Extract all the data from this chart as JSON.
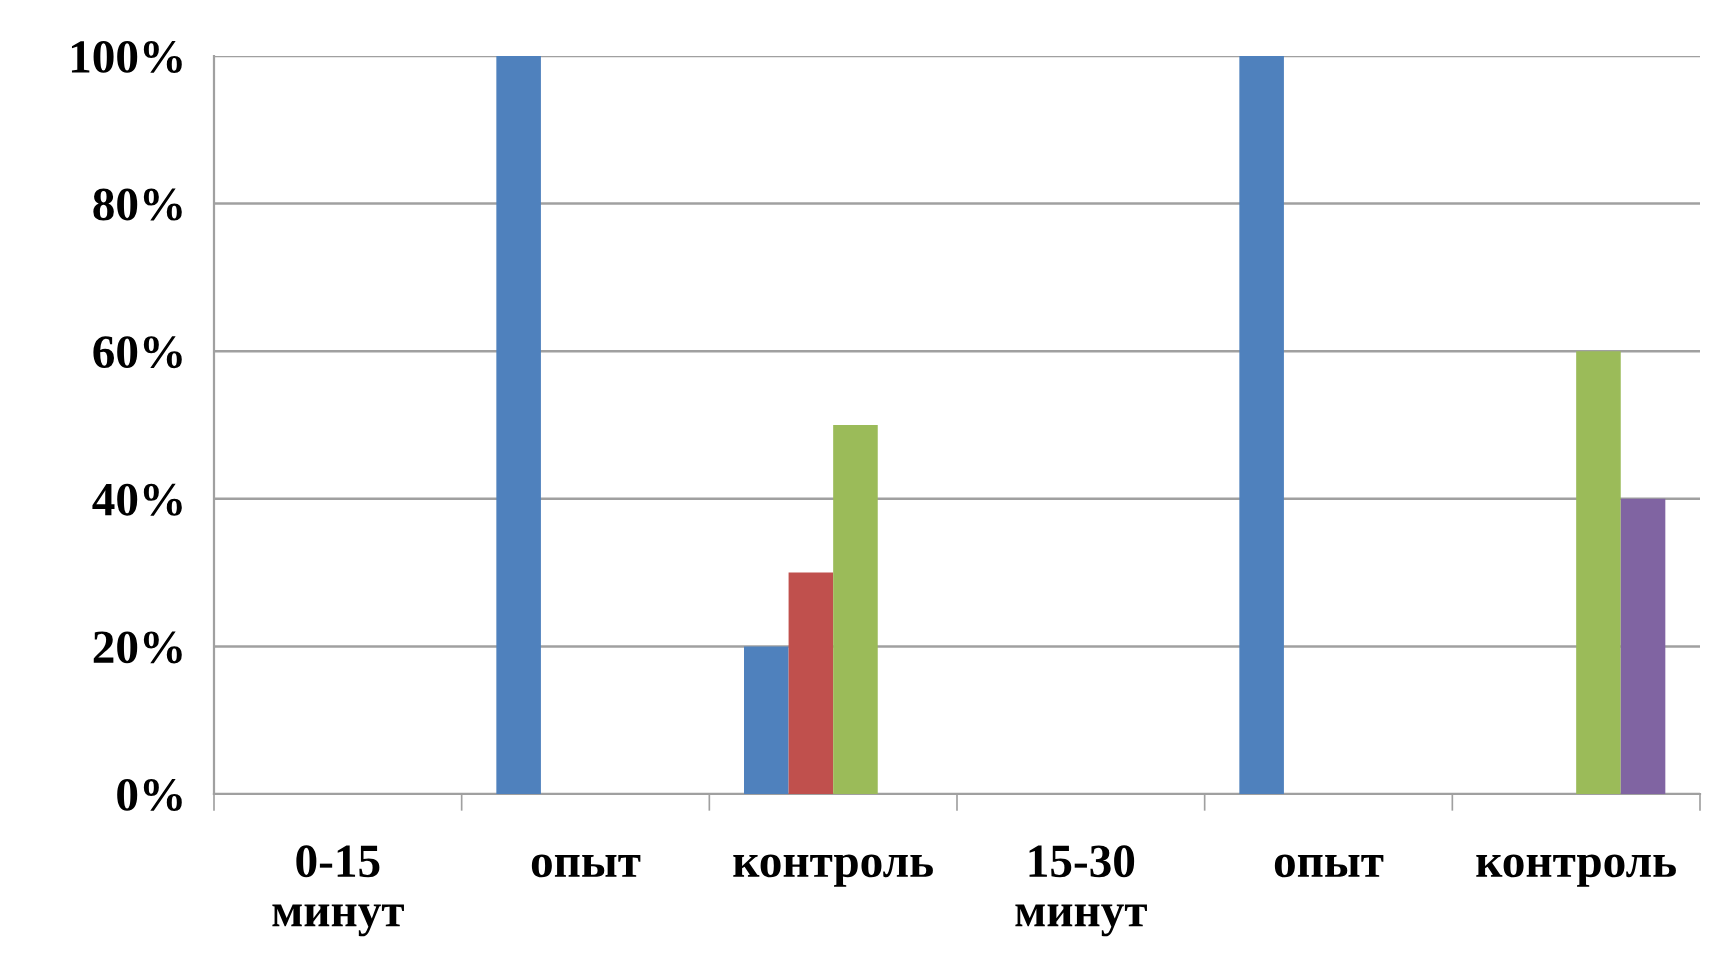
{
  "chart_data": {
    "type": "bar",
    "categories": [
      "0-15\nминут",
      "опыт",
      "контроль",
      "15-30\nминут",
      "опыт",
      "контроль"
    ],
    "series": [
      {
        "color": "#4f81bd",
        "values": [
          null,
          100,
          20,
          null,
          100,
          null
        ]
      },
      {
        "color": "#c0504d",
        "values": [
          null,
          null,
          30,
          null,
          null,
          null
        ]
      },
      {
        "color": "#9bbb59",
        "values": [
          null,
          null,
          50,
          null,
          null,
          60
        ]
      },
      {
        "color": "#8064a2",
        "values": [
          null,
          null,
          null,
          null,
          null,
          40
        ]
      }
    ],
    "ylim": [
      0,
      100
    ],
    "yticks": [
      {
        "value": 0,
        "label": "0%"
      },
      {
        "value": 20,
        "label": "20%"
      },
      {
        "value": 40,
        "label": "40%"
      },
      {
        "value": 60,
        "label": "60%"
      },
      {
        "value": 80,
        "label": "80%"
      },
      {
        "value": 100,
        "label": "100%"
      }
    ],
    "grid": "y"
  }
}
